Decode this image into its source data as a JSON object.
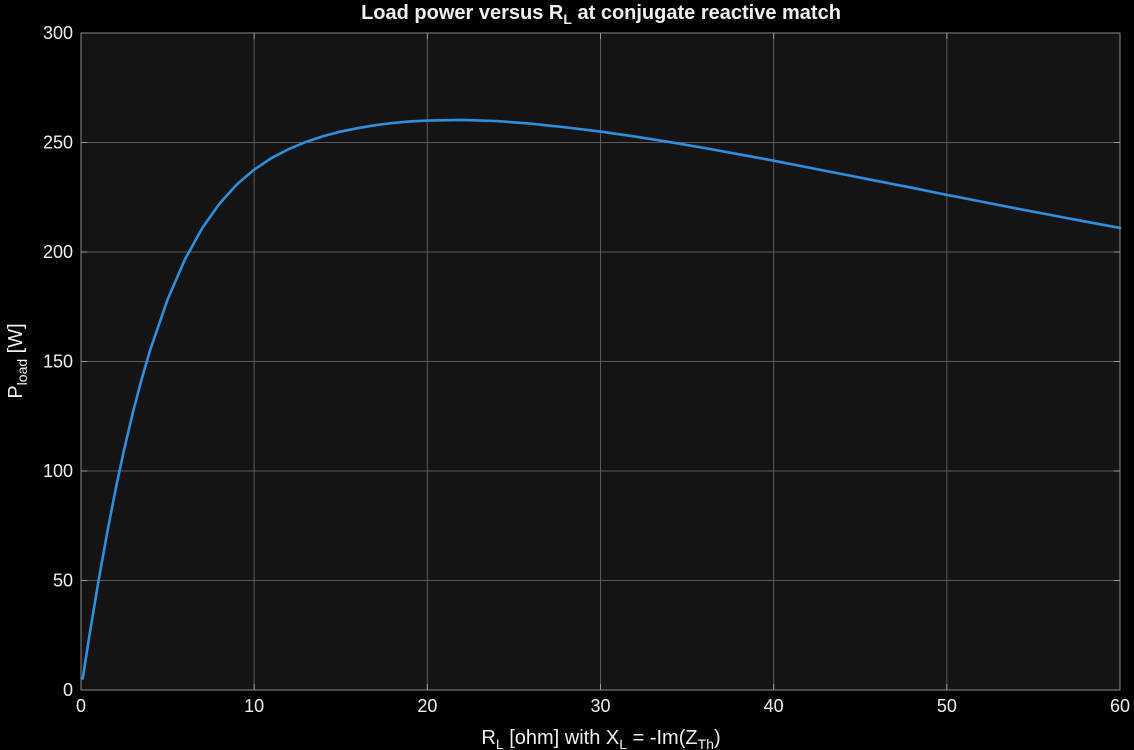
{
  "chart_data": {
    "type": "line",
    "title": {
      "before": "Load  power  versus  R",
      "sub": "L",
      "after": "  at  conjugate  reactive  match"
    },
    "xlabel": {
      "p1": "R",
      "s1": "L",
      "p2": "  [ohm]  with  X",
      "s2": "L",
      "p3": "  =  -Im(Z",
      "s3": "Th",
      "p4": ")"
    },
    "ylabel": {
      "main": "P",
      "sub": "load",
      "unit": "  [W]"
    },
    "xlim": [
      0,
      60
    ],
    "ylim": [
      0,
      300
    ],
    "xticks": [
      0,
      10,
      20,
      30,
      40,
      50,
      60
    ],
    "yticks": [
      0,
      50,
      100,
      150,
      200,
      250,
      300
    ],
    "grid": true,
    "colors": {
      "background": "#000000",
      "plot_area": "#141414",
      "line": "#2f8fdf",
      "grid": "#5a5a5a",
      "text": "#f0f0f0"
    },
    "series": [
      {
        "x": [
          0.1,
          0.5,
          1,
          1.5,
          2,
          2.5,
          3,
          3.5,
          4,
          5,
          6,
          7,
          8,
          9,
          10,
          11,
          12,
          13,
          14,
          15,
          16,
          17,
          18,
          19,
          20,
          22,
          24,
          26,
          28,
          30,
          32,
          34,
          36,
          38,
          40,
          42,
          44,
          46,
          48,
          50,
          52,
          54,
          56,
          58,
          60
        ],
        "y": [
          5.2,
          25.5,
          49.3,
          71.3,
          91.7,
          110.1,
          126.8,
          141.9,
          155.4,
          178.3,
          196.6,
          210.9,
          222.1,
          230.9,
          237.6,
          242.9,
          247.0,
          250.3,
          252.9,
          255.0,
          256.6,
          257.9,
          258.9,
          259.6,
          260.0,
          260.3,
          259.8,
          258.6,
          256.9,
          255.0,
          252.7,
          250.2,
          247.5,
          244.6,
          241.7,
          238.6,
          235.5,
          232.4,
          229.3,
          226.1,
          223.0,
          219.9,
          216.9,
          213.9,
          211.0
        ]
      }
    ]
  }
}
